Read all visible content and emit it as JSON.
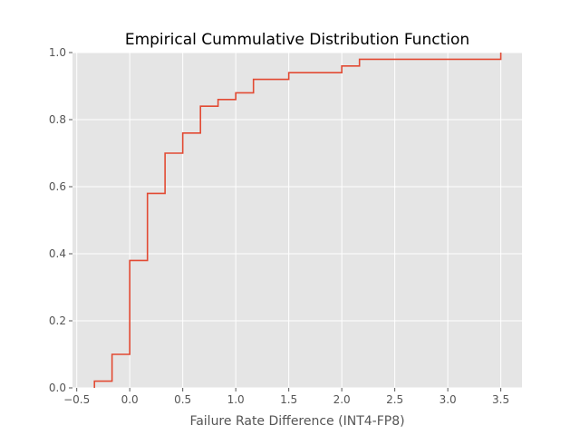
{
  "chart_data": {
    "type": "line",
    "title": "Empirical Cummulative Distribution Function",
    "xlabel": "Failure Rate Difference (INT4-FP8)",
    "ylabel": "",
    "xlim": [
      -0.54,
      3.7
    ],
    "ylim": [
      0.0,
      1.0
    ],
    "grid": true,
    "background": "#e5e5e5",
    "line_color": "#e24a33",
    "x_ticks": [
      -0.5,
      0.0,
      0.5,
      1.0,
      1.5,
      2.0,
      2.5,
      3.0,
      3.5
    ],
    "x_tick_labels": [
      "−0.5",
      "0.0",
      "0.5",
      "1.0",
      "1.5",
      "2.0",
      "2.5",
      "3.0",
      "3.5"
    ],
    "y_ticks": [
      0.0,
      0.2,
      0.4,
      0.6,
      0.8,
      1.0
    ],
    "y_tick_labels": [
      "0.0",
      "0.2",
      "0.4",
      "0.6",
      "0.8",
      "1.0"
    ],
    "series": [
      {
        "drawstyle": "steps-post",
        "x": [
          -0.333,
          -0.167,
          0.0,
          0.167,
          0.333,
          0.5,
          0.667,
          0.833,
          1.0,
          1.167,
          1.5,
          2.0,
          2.167,
          3.5
        ],
        "y": [
          0.02,
          0.1,
          0.38,
          0.58,
          0.7,
          0.76,
          0.84,
          0.86,
          0.88,
          0.92,
          0.94,
          0.96,
          0.98,
          1.0
        ]
      }
    ]
  }
}
